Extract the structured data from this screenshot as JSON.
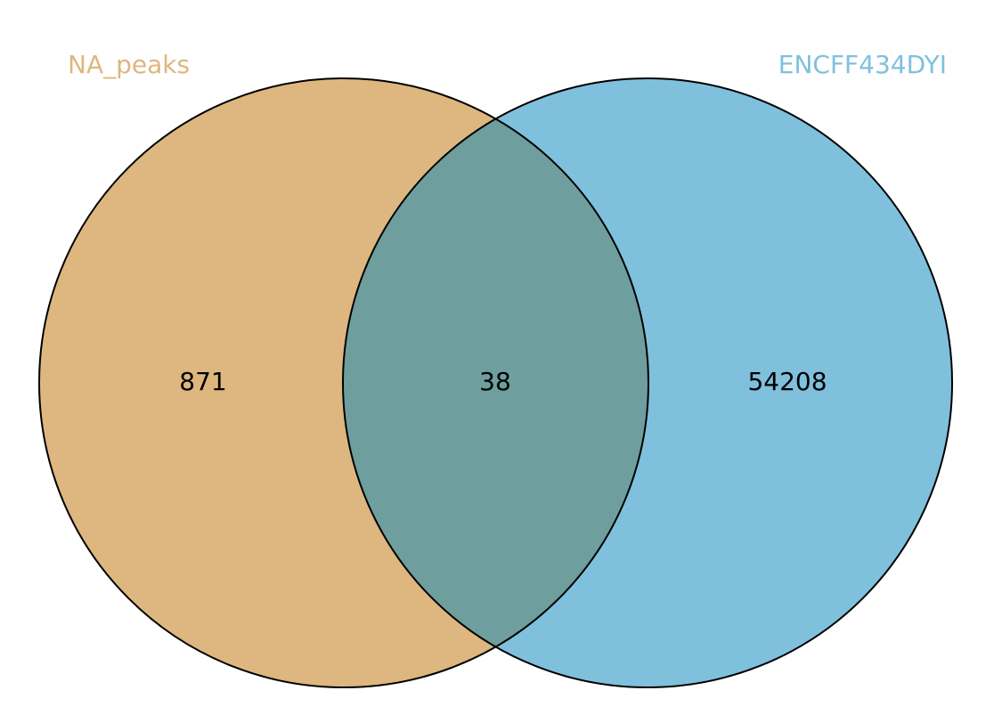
{
  "venn": {
    "sets": [
      {
        "id": "left",
        "label": "NA_peaks",
        "color": "#DDB77F",
        "label_color": "#DDB77F"
      },
      {
        "id": "right",
        "label": "ENCFF434DYI",
        "color": "#7FC0DD",
        "label_color": "#7FC0DD"
      }
    ],
    "regions": {
      "left_only": "871",
      "intersection": "38",
      "right_only": "54208"
    },
    "intersection_color": "#6E9E9E",
    "outline_color": "#000000"
  }
}
